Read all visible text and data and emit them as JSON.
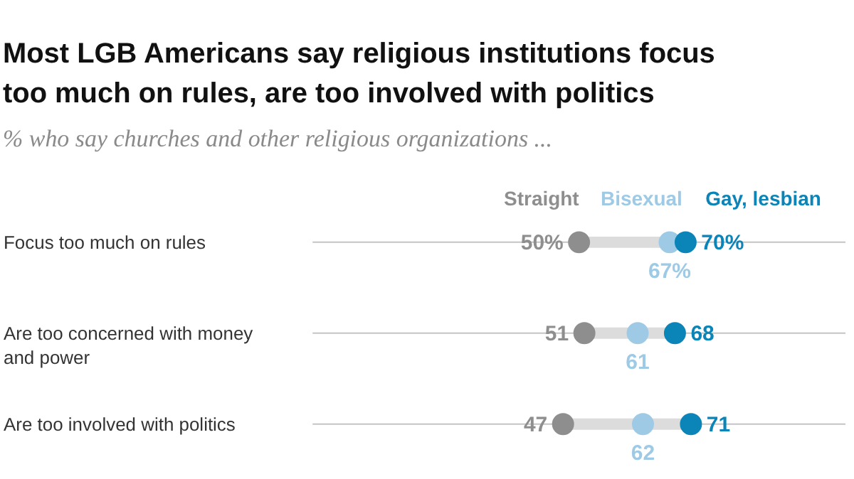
{
  "chart_data": {
    "type": "scatter",
    "title": "Most LGB Americans say religious institutions focus too much on rules, are too involved with politics",
    "subtitle": "% who say churches and other religious organizations ...",
    "categories": [
      "Focus too much on rules",
      "Are too concerned with money and power",
      "Are too involved with politics"
    ],
    "xlim": [
      0,
      100
    ],
    "series": [
      {
        "name": "Straight",
        "color": "#8e8e8e",
        "values": [
          50,
          51,
          47
        ],
        "value_labels": [
          "50%",
          "51",
          "47"
        ]
      },
      {
        "name": "Bisexual",
        "color": "#9ecae5",
        "values": [
          67,
          61,
          62
        ],
        "value_labels": [
          "67%",
          "61",
          "62"
        ]
      },
      {
        "name": "Gay, lesbian",
        "color": "#0b84b8",
        "values": [
          70,
          68,
          71
        ],
        "value_labels": [
          "70%",
          "68",
          "71"
        ]
      }
    ],
    "orientation": "horizontal",
    "marker": "circle",
    "grid": "y",
    "legend": false
  }
}
